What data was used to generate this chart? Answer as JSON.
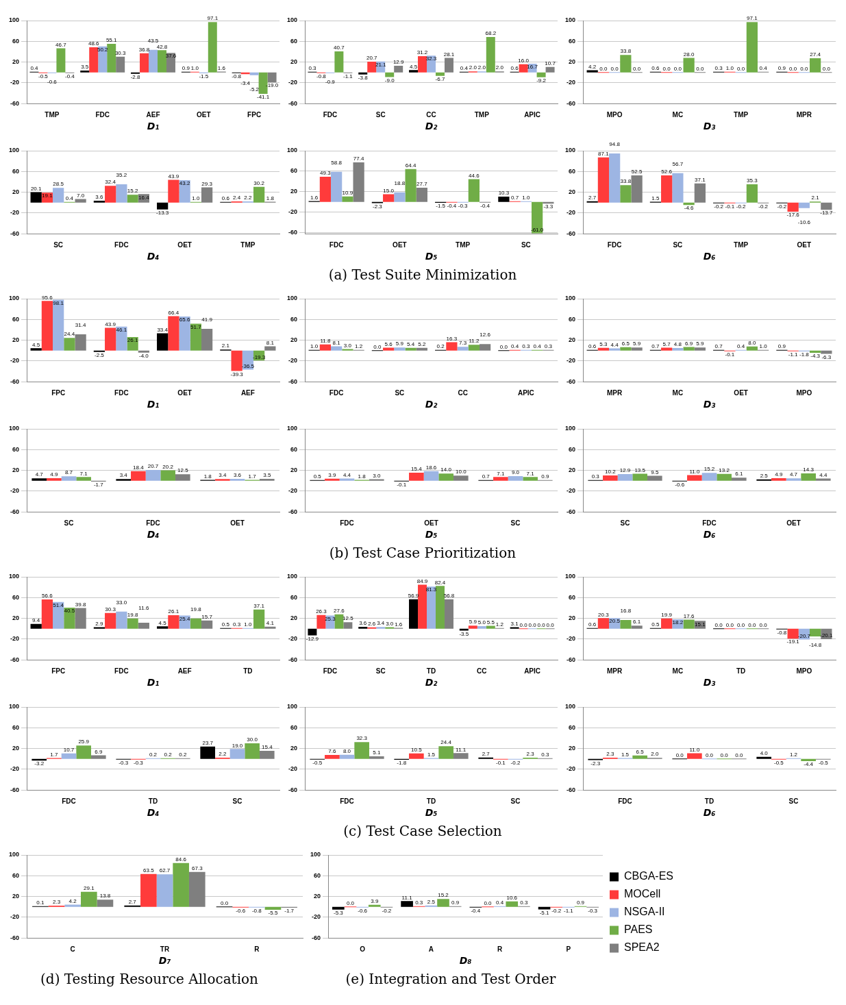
{
  "chart_data": [
    {
      "type": "bar",
      "xlabel": "D₁",
      "categories": [
        "TMP",
        "FDC",
        "AEF",
        "OET",
        "FPC"
      ],
      "ylim": [
        -60,
        100
      ],
      "yticks": [
        -60,
        -20,
        20,
        60,
        100
      ],
      "grid": "y",
      "series": [
        {
          "color": "#000000",
          "values": [
            0.4,
            3.5,
            -2.8,
            0.9,
            -0.8
          ],
          "value_labels": [
            "0.4",
            "3.5",
            "-2.8",
            "0.9",
            "-0.8"
          ]
        },
        {
          "color": "#ff3b3b",
          "values": [
            -0.5,
            48.6,
            36.8,
            1.0,
            -3.4
          ],
          "value_labels": [
            "-0.5",
            "48.6",
            "36.8",
            "1.0",
            "-3.4"
          ]
        },
        {
          "color": "#9db5e3",
          "values": [
            -0.6,
            50.2,
            43.5,
            -1.5,
            -5.2
          ],
          "value_labels": [
            "-0.6",
            "50.2",
            "43.5",
            "-1.5",
            "-5.2"
          ]
        },
        {
          "color": "#70ad47",
          "values": [
            46.7,
            55.1,
            42.8,
            97.1,
            -41.1
          ],
          "value_labels": [
            "46.7",
            "55.1",
            "42.8",
            "97.1",
            "-41.1"
          ]
        },
        {
          "color": "#7f7f7f",
          "values": [
            -0.4,
            30.3,
            37.6,
            1.6,
            -19.0
          ],
          "value_labels": [
            "-0.4",
            "30.3",
            "37.6",
            "1.6",
            "-19.0"
          ]
        }
      ]
    },
    {
      "type": "bar",
      "xlabel": "D₂",
      "categories": [
        "FDC",
        "SC",
        "CC",
        "TMP",
        "APIC"
      ],
      "ylim": [
        -60,
        100
      ],
      "yticks": [
        -60,
        -20,
        20,
        60,
        100
      ],
      "grid": "y",
      "series": [
        {
          "color": "#000000",
          "values": [
            0.3,
            -3.8,
            4.5,
            0.4,
            0.6
          ],
          "value_labels": [
            "0.3",
            "-3.8",
            "4.5",
            "0.4",
            "0.6"
          ]
        },
        {
          "color": "#ff3b3b",
          "values": [
            -0.8,
            20.7,
            31.2,
            2.0,
            16.0
          ],
          "value_labels": [
            "-0.8",
            "20.7",
            "31.2",
            "2.0",
            "16.0"
          ]
        },
        {
          "color": "#9db5e3",
          "values": [
            -0.9,
            21.1,
            32.3,
            2.0,
            16.7
          ],
          "value_labels": [
            "-0.9",
            "21.1",
            "32.3",
            "2.0",
            "16.7"
          ]
        },
        {
          "color": "#70ad47",
          "values": [
            40.7,
            -9.0,
            -6.7,
            68.2,
            -9.2
          ],
          "value_labels": [
            "40.7",
            "-9.0",
            "-6.7",
            "68.2",
            "-9.2"
          ]
        },
        {
          "color": "#7f7f7f",
          "values": [
            -1.1,
            12.9,
            28.1,
            2.0,
            10.7
          ],
          "value_labels": [
            "-1.1",
            "12.9",
            "28.1",
            "2.0",
            "10.7"
          ]
        }
      ]
    },
    {
      "type": "bar",
      "xlabel": "D₃",
      "categories": [
        "MPO",
        "MC",
        "TMP",
        "MPR"
      ],
      "ylim": [
        -60,
        100
      ],
      "yticks": [
        -60,
        -20,
        20,
        60,
        100
      ],
      "grid": "y",
      "series": [
        {
          "color": "#000000",
          "values": [
            4.2,
            0.6,
            0.3,
            0.9
          ],
          "value_labels": [
            "4.2",
            "0.6",
            "0.3",
            "0.9"
          ]
        },
        {
          "color": "#ff3b3b",
          "values": [
            0.0,
            0.0,
            1.0,
            0.0
          ],
          "value_labels": [
            "0.0",
            "0.0",
            "1.0",
            "0.0"
          ]
        },
        {
          "color": "#9db5e3",
          "values": [
            0.0,
            0.0,
            0.0,
            0.0
          ],
          "value_labels": [
            "0.0",
            "0.0",
            "0.0",
            "0.0"
          ]
        },
        {
          "color": "#70ad47",
          "values": [
            33.8,
            28.0,
            97.1,
            27.4
          ],
          "value_labels": [
            "33.8",
            "28.0",
            "97.1",
            "27.4"
          ]
        },
        {
          "color": "#7f7f7f",
          "values": [
            0.0,
            0.0,
            0.4,
            0.0
          ],
          "value_labels": [
            "0.0",
            "0.0",
            "0.4",
            "0.0"
          ]
        }
      ]
    },
    {
      "type": "bar",
      "xlabel": "D₄",
      "categories": [
        "SC",
        "FDC",
        "OET",
        "TMP"
      ],
      "ylim": [
        -60,
        100
      ],
      "yticks": [
        -60,
        -20,
        20,
        60,
        100
      ],
      "grid": "y",
      "series": [
        {
          "color": "#000000",
          "values": [
            20.1,
            3.6,
            -13.3,
            0.6
          ],
          "value_labels": [
            "20.1",
            "3.6",
            "-13.3",
            "0.6"
          ]
        },
        {
          "color": "#ff3b3b",
          "values": [
            19.1,
            32.4,
            43.9,
            2.4
          ],
          "value_labels": [
            "19.1",
            "32.4",
            "43.9",
            "2.4"
          ]
        },
        {
          "color": "#9db5e3",
          "values": [
            28.5,
            35.2,
            43.2,
            2.2
          ],
          "value_labels": [
            "28.5",
            "35.2",
            "43.2",
            "2.2"
          ]
        },
        {
          "color": "#70ad47",
          "values": [
            0.4,
            15.2,
            1.0,
            30.2
          ],
          "value_labels": [
            "0.4",
            "15.2",
            "1.0",
            "30.2"
          ]
        },
        {
          "color": "#7f7f7f",
          "values": [
            7.0,
            16.4,
            29.3,
            1.8
          ],
          "value_labels": [
            "7.0",
            "16.4",
            "29.3",
            "1.8"
          ]
        }
      ]
    },
    {
      "type": "bar",
      "xlabel": "D₅",
      "categories": [
        "FDC",
        "OET",
        "TMP",
        "SC"
      ],
      "ylim": [
        -62,
        100
      ],
      "yticks": [
        -60,
        -20,
        20,
        60,
        100
      ],
      "grid": "y",
      "annotations": [
        "(a) Test Suite Minimization"
      ],
      "series": [
        {
          "color": "#000000",
          "values": [
            1.6,
            -2.3,
            -1.5,
            10.3
          ],
          "value_labels": [
            "1.6",
            "-2.3",
            "-1.5",
            "10.3"
          ]
        },
        {
          "color": "#ff3b3b",
          "values": [
            49.3,
            15.0,
            -0.4,
            0.7
          ],
          "value_labels": [
            "49.3",
            "15.0",
            "-0.4",
            "0.7"
          ]
        },
        {
          "color": "#9db5e3",
          "values": [
            58.8,
            18.8,
            -0.3,
            1.0
          ],
          "value_labels": [
            "58.8",
            "18.8",
            "-0.3",
            "1.0"
          ]
        },
        {
          "color": "#70ad47",
          "values": [
            10.9,
            64.4,
            44.6,
            -61.0
          ],
          "value_labels": [
            "10.9",
            "64.4",
            "44.6",
            "-61.0"
          ]
        },
        {
          "color": "#7f7f7f",
          "values": [
            77.4,
            27.7,
            -0.4,
            -3.3
          ],
          "value_labels": [
            "77.4",
            "27.7",
            "-0.4",
            "-3.3"
          ]
        }
      ]
    },
    {
      "type": "bar",
      "xlabel": "D₆",
      "categories": [
        "FDC",
        "SC",
        "TMP",
        "OET"
      ],
      "ylim": [
        -60,
        100
      ],
      "yticks": [
        -60,
        -20,
        20,
        60,
        100
      ],
      "grid": "y",
      "series": [
        {
          "color": "#000000",
          "values": [
            2.7,
            1.5,
            -0.2,
            -0.2
          ],
          "value_labels": [
            "2.7",
            "1.5",
            "-0.2",
            "-0.2"
          ]
        },
        {
          "color": "#ff3b3b",
          "values": [
            87.1,
            52.6,
            -0.1,
            -17.6
          ],
          "value_labels": [
            "87.1",
            "52.6",
            "-0.1",
            "-17.6"
          ]
        },
        {
          "color": "#9db5e3",
          "values": [
            94.8,
            56.7,
            -0.2,
            -10.6
          ],
          "value_labels": [
            "94.8",
            "56.7",
            "-0.2",
            "-10.6"
          ]
        },
        {
          "color": "#70ad47",
          "values": [
            33.8,
            -4.6,
            35.3,
            2.1
          ],
          "value_labels": [
            "33.8",
            "-4.6",
            "35.3",
            "2.1"
          ]
        },
        {
          "color": "#7f7f7f",
          "values": [
            52.5,
            37.1,
            -0.2,
            -13.7
          ],
          "value_labels": [
            "52.5",
            "37.1",
            "-0.2",
            "-13.7"
          ]
        }
      ]
    },
    {
      "type": "bar",
      "xlabel": "D₁",
      "categories": [
        "FPC",
        "FDC",
        "OET",
        "AEF"
      ],
      "ylim": [
        -60,
        100
      ],
      "yticks": [
        -60,
        -20,
        20,
        60,
        100
      ],
      "grid": "y",
      "series": [
        {
          "color": "#000000",
          "values": [
            4.5,
            -2.5,
            33.4,
            2.1
          ],
          "value_labels": [
            "4.5",
            "-2.5",
            "33.4",
            "2.1"
          ]
        },
        {
          "color": "#ff3b3b",
          "values": [
            95.6,
            43.9,
            66.4,
            -39.3
          ],
          "value_labels": [
            "95.6",
            "43.9",
            "66.4",
            "-39.3"
          ]
        },
        {
          "color": "#9db5e3",
          "values": [
            98.1,
            46.1,
            65.6,
            -36.5
          ],
          "value_labels": [
            "98.1",
            "46.1",
            "65.6",
            "-36.5"
          ]
        },
        {
          "color": "#70ad47",
          "values": [
            24.4,
            26.1,
            51.7,
            -19.3
          ],
          "value_labels": [
            "24.4",
            "26.1",
            "51.7",
            "-19.3"
          ]
        },
        {
          "color": "#7f7f7f",
          "values": [
            31.4,
            -4.0,
            41.9,
            8.1
          ],
          "value_labels": [
            "31.4",
            "-4.0",
            "41.9",
            "8.1"
          ]
        }
      ]
    },
    {
      "type": "bar",
      "xlabel": "D₂",
      "categories": [
        "FDC",
        "SC",
        "CC",
        "APIC"
      ],
      "ylim": [
        -60,
        100
      ],
      "yticks": [
        -60,
        -20,
        20,
        60,
        100
      ],
      "grid": "y",
      "series": [
        {
          "color": "#000000",
          "values": [
            1.0,
            0.0,
            0.2,
            0.0
          ],
          "value_labels": [
            "1.0",
            "0.0",
            "0.2",
            "0.0"
          ]
        },
        {
          "color": "#ff3b3b",
          "values": [
            11.8,
            5.6,
            16.3,
            0.4
          ],
          "value_labels": [
            "11.8",
            "5.6",
            "16.3",
            "0.4"
          ]
        },
        {
          "color": "#9db5e3",
          "values": [
            8.1,
            5.9,
            7.3,
            0.3
          ],
          "value_labels": [
            "8.1",
            "5.9",
            "7.3",
            "0.3"
          ]
        },
        {
          "color": "#70ad47",
          "values": [
            3.0,
            5.4,
            11.2,
            0.4
          ],
          "value_labels": [
            "3.0",
            "5.4",
            "11.2",
            "0.4"
          ]
        },
        {
          "color": "#7f7f7f",
          "values": [
            1.2,
            5.2,
            12.6,
            0.3
          ],
          "value_labels": [
            "1.2",
            "5.2",
            "12.6",
            "0.3"
          ]
        }
      ]
    },
    {
      "type": "bar",
      "xlabel": "D₃",
      "categories": [
        "MPR",
        "MC",
        "OET",
        "MPO"
      ],
      "ylim": [
        -60,
        100
      ],
      "yticks": [
        -60,
        -20,
        20,
        60,
        100
      ],
      "grid": "y",
      "series": [
        {
          "color": "#000000",
          "values": [
            0.6,
            0.7,
            0.7,
            0.9
          ],
          "value_labels": [
            "0.6",
            "0.7",
            "0.7",
            "0.9"
          ]
        },
        {
          "color": "#ff3b3b",
          "values": [
            5.3,
            5.7,
            -0.1,
            -1.1
          ],
          "value_labels": [
            "5.3",
            "5.7",
            "-0.1",
            "-1.1"
          ]
        },
        {
          "color": "#9db5e3",
          "values": [
            4.4,
            4.8,
            0.4,
            -1.8
          ],
          "value_labels": [
            "4.4",
            "4.8",
            "0.4",
            "-1.8"
          ]
        },
        {
          "color": "#70ad47",
          "values": [
            6.5,
            6.9,
            8.0,
            -4.3
          ],
          "value_labels": [
            "6.5",
            "6.9",
            "8.0",
            "-4.3"
          ]
        },
        {
          "color": "#7f7f7f",
          "values": [
            5.9,
            5.9,
            1.0,
            -6.3
          ],
          "value_labels": [
            "5.9",
            "5.9",
            "1.0",
            "-6.3"
          ]
        }
      ]
    },
    {
      "type": "bar",
      "xlabel": "D₄",
      "categories": [
        "SC",
        "FDC",
        "OET"
      ],
      "ylim": [
        -60,
        100
      ],
      "yticks": [
        -60,
        -20,
        20,
        60,
        100
      ],
      "grid": "y",
      "series": [
        {
          "color": "#000000",
          "values": [
            4.7,
            3.4,
            1.8
          ],
          "value_labels": [
            "4.7",
            "3.4",
            "1.8"
          ]
        },
        {
          "color": "#ff3b3b",
          "values": [
            4.9,
            18.4,
            3.4
          ],
          "value_labels": [
            "4.9",
            "18.4",
            "3.4"
          ]
        },
        {
          "color": "#9db5e3",
          "values": [
            8.7,
            20.7,
            3.6
          ],
          "value_labels": [
            "8.7",
            "20.7",
            "3.6"
          ]
        },
        {
          "color": "#70ad47",
          "values": [
            7.1,
            20.2,
            1.7
          ],
          "value_labels": [
            "7.1",
            "20.2",
            "1.7"
          ]
        },
        {
          "color": "#7f7f7f",
          "values": [
            -1.7,
            12.5,
            3.5
          ],
          "value_labels": [
            "-1.7",
            "12.5",
            "3.5"
          ]
        }
      ]
    },
    {
      "type": "bar",
      "xlabel": "D₅",
      "categories": [
        "FDC",
        "OET",
        "SC"
      ],
      "ylim": [
        -60,
        100
      ],
      "yticks": [
        -60,
        -20,
        20,
        60,
        100
      ],
      "grid": "y",
      "annotations": [
        "(b) Test Case Prioritization"
      ],
      "series": [
        {
          "color": "#000000",
          "values": [
            0.5,
            -0.1,
            0.7
          ],
          "value_labels": [
            "0.5",
            "-0.1",
            "0.7"
          ]
        },
        {
          "color": "#ff3b3b",
          "values": [
            3.9,
            15.4,
            7.1
          ],
          "value_labels": [
            "3.9",
            "15.4",
            "7.1"
          ]
        },
        {
          "color": "#9db5e3",
          "values": [
            4.4,
            18.6,
            9.0
          ],
          "value_labels": [
            "4.4",
            "18.6",
            "9.0"
          ]
        },
        {
          "color": "#70ad47",
          "values": [
            1.8,
            14.0,
            7.1
          ],
          "value_labels": [
            "1.8",
            "14.0",
            "7.1"
          ]
        },
        {
          "color": "#7f7f7f",
          "values": [
            3.0,
            10.0,
            0.9
          ],
          "value_labels": [
            "3.0",
            "10.0",
            "0.9"
          ]
        }
      ]
    },
    {
      "type": "bar",
      "xlabel": "D₆",
      "categories": [
        "SC",
        "FDC",
        "OET"
      ],
      "ylim": [
        -60,
        100
      ],
      "yticks": [
        -60,
        -20,
        20,
        60,
        100
      ],
      "grid": "y",
      "series": [
        {
          "color": "#000000",
          "values": [
            0.3,
            -0.6,
            2.5
          ],
          "value_labels": [
            "0.3",
            "-0.6",
            "2.5"
          ]
        },
        {
          "color": "#ff3b3b",
          "values": [
            10.2,
            11.0,
            4.9
          ],
          "value_labels": [
            "10.2",
            "11.0",
            "4.9"
          ]
        },
        {
          "color": "#9db5e3",
          "values": [
            12.9,
            15.2,
            4.7
          ],
          "value_labels": [
            "12.9",
            "15.2",
            "4.7"
          ]
        },
        {
          "color": "#70ad47",
          "values": [
            13.5,
            13.2,
            14.3
          ],
          "value_labels": [
            "13.5",
            "13.2",
            "14.3"
          ]
        },
        {
          "color": "#7f7f7f",
          "values": [
            9.5,
            6.1,
            4.4
          ],
          "value_labels": [
            "9.5",
            "6.1",
            "4.4"
          ]
        }
      ]
    },
    {
      "type": "bar",
      "xlabel": "D₁",
      "categories": [
        "FPC",
        "FDC",
        "AEF",
        "TD"
      ],
      "ylim": [
        -60,
        100
      ],
      "yticks": [
        -60,
        -20,
        20,
        60,
        100
      ],
      "grid": "y",
      "series": [
        {
          "color": "#000000",
          "values": [
            9.4,
            2.9,
            4.5,
            0.5
          ],
          "value_labels": [
            "9.4",
            "2.9",
            "4.5",
            "0.5"
          ]
        },
        {
          "color": "#ff3b3b",
          "values": [
            56.6,
            30.3,
            26.1,
            0.3
          ],
          "value_labels": [
            "56.6",
            "30.3",
            "26.1",
            "0.3"
          ]
        },
        {
          "color": "#9db5e3",
          "values": [
            51.4,
            33.0,
            25.4,
            1.0
          ],
          "value_labels": [
            "51.4",
            "33.0",
            "25.4",
            "1.0"
          ]
        },
        {
          "color": "#70ad47",
          "values": [
            40.5,
            19.8,
            19.8,
            37.1
          ],
          "value_labels": [
            "40.5",
            "19.8",
            "19.8",
            "37.1"
          ]
        },
        {
          "color": "#7f7f7f",
          "values": [
            39.8,
            11.6,
            15.7,
            4.1
          ],
          "value_labels": [
            "39.8",
            "11.6",
            "15.7",
            "4.1"
          ]
        }
      ]
    },
    {
      "type": "bar",
      "xlabel": "D₂",
      "categories": [
        "FDC",
        "SC",
        "TD",
        "CC",
        "APIC"
      ],
      "ylim": [
        -60,
        100
      ],
      "yticks": [
        -60,
        -20,
        20,
        60,
        100
      ],
      "grid": "y",
      "series": [
        {
          "color": "#000000",
          "values": [
            -12.9,
            3.6,
            56.9,
            -3.5,
            3.1
          ],
          "value_labels": [
            "-12.9",
            "3.6",
            "56.9",
            "-3.5",
            "3.1"
          ]
        },
        {
          "color": "#ff3b3b",
          "values": [
            26.3,
            2.6,
            84.9,
            5.9,
            0.0
          ],
          "value_labels": [
            "26.3",
            "2.6",
            "84.9",
            "5.9",
            "0.0"
          ]
        },
        {
          "color": "#9db5e3",
          "values": [
            25.3,
            3.4,
            81.3,
            5.0,
            0.0
          ],
          "value_labels": [
            "25.3",
            "3.4",
            "81.3",
            "5.0",
            "0.0"
          ]
        },
        {
          "color": "#70ad47",
          "values": [
            27.6,
            3.0,
            82.4,
            5.5,
            0.0
          ],
          "value_labels": [
            "27.6",
            "3.0",
            "82.4",
            "5.5",
            "0.0"
          ]
        },
        {
          "color": "#7f7f7f",
          "values": [
            12.5,
            1.6,
            56.8,
            1.2,
            0.0
          ],
          "value_labels": [
            "12.5",
            "1.6",
            "56.8",
            "1.2",
            "0.0"
          ]
        }
      ]
    },
    {
      "type": "bar",
      "xlabel": "D₃",
      "categories": [
        "MPR",
        "MC",
        "TD",
        "MPO"
      ],
      "ylim": [
        -60,
        100
      ],
      "yticks": [
        -60,
        -20,
        20,
        60,
        100
      ],
      "grid": "y",
      "series": [
        {
          "color": "#000000",
          "values": [
            0.6,
            0.5,
            0.0,
            -0.8
          ],
          "value_labels": [
            "0.6",
            "0.5",
            "0.0",
            "-0.8"
          ]
        },
        {
          "color": "#ff3b3b",
          "values": [
            20.3,
            19.9,
            0.0,
            -19.1
          ],
          "value_labels": [
            "20.3",
            "19.9",
            "0.0",
            "-19.1"
          ]
        },
        {
          "color": "#9db5e3",
          "values": [
            20.5,
            18.2,
            0.0,
            -20.7
          ],
          "value_labels": [
            "20.5",
            "18.2",
            "0.0",
            "-20.7"
          ]
        },
        {
          "color": "#70ad47",
          "values": [
            16.8,
            17.6,
            0.0,
            -14.8
          ],
          "value_labels": [
            "16.8",
            "17.6",
            "0.0",
            "-14.8"
          ]
        },
        {
          "color": "#7f7f7f",
          "values": [
            6.1,
            15.1,
            0.0,
            -20.1
          ],
          "value_labels": [
            "6.1",
            "15.1",
            "0.0",
            "-20.1"
          ]
        }
      ]
    },
    {
      "type": "bar",
      "xlabel": "D₄",
      "categories": [
        "FDC",
        "TD",
        "SC"
      ],
      "ylim": [
        -60,
        100
      ],
      "yticks": [
        -60,
        -20,
        20,
        60,
        100
      ],
      "grid": "y",
      "series": [
        {
          "color": "#000000",
          "values": [
            -3.2,
            -0.3,
            23.7
          ],
          "value_labels": [
            "-3.2",
            "-0.3",
            "23.7"
          ]
        },
        {
          "color": "#ff3b3b",
          "values": [
            1.7,
            -0.3,
            2.2
          ],
          "value_labels": [
            "1.7",
            "-0.3",
            "2.2"
          ]
        },
        {
          "color": "#9db5e3",
          "values": [
            10.7,
            0.2,
            19.0
          ],
          "value_labels": [
            "10.7",
            "0.2",
            "19.0"
          ]
        },
        {
          "color": "#70ad47",
          "values": [
            25.9,
            0.2,
            30.0
          ],
          "value_labels": [
            "25.9",
            "0.2",
            "30.0"
          ]
        },
        {
          "color": "#7f7f7f",
          "values": [
            6.9,
            0.2,
            15.4
          ],
          "value_labels": [
            "6.9",
            "0.2",
            "15.4"
          ]
        }
      ]
    },
    {
      "type": "bar",
      "xlabel": "D₅",
      "categories": [
        "FDC",
        "TD",
        "SC"
      ],
      "ylim": [
        -60,
        100
      ],
      "yticks": [
        -60,
        -20,
        20,
        60,
        100
      ],
      "grid": "y",
      "annotations": [
        "(c) Test Case Selection"
      ],
      "series": [
        {
          "color": "#000000",
          "values": [
            -0.5,
            -1.8,
            2.7
          ],
          "value_labels": [
            "-0.5",
            "-1.8",
            "2.7"
          ]
        },
        {
          "color": "#ff3b3b",
          "values": [
            7.6,
            10.5,
            -0.1
          ],
          "value_labels": [
            "7.6",
            "10.5",
            "-0.1"
          ]
        },
        {
          "color": "#9db5e3",
          "values": [
            8.0,
            1.5,
            -0.2
          ],
          "value_labels": [
            "8.0",
            "1.5",
            "-0.2"
          ]
        },
        {
          "color": "#70ad47",
          "values": [
            32.3,
            24.4,
            2.3
          ],
          "value_labels": [
            "32.3",
            "24.4",
            "2.3"
          ]
        },
        {
          "color": "#7f7f7f",
          "values": [
            5.1,
            11.1,
            0.3
          ],
          "value_labels": [
            "5.1",
            "11.1",
            "0.3"
          ]
        }
      ]
    },
    {
      "type": "bar",
      "xlabel": "D₆",
      "categories": [
        "FDC",
        "TD",
        "SC"
      ],
      "ylim": [
        -60,
        100
      ],
      "yticks": [
        -60,
        -20,
        20,
        60,
        100
      ],
      "grid": "y",
      "series": [
        {
          "color": "#000000",
          "values": [
            -2.3,
            0.0,
            4.0
          ],
          "value_labels": [
            "-2.3",
            "0.0",
            "4.0"
          ]
        },
        {
          "color": "#ff3b3b",
          "values": [
            2.3,
            11.0,
            -0.5
          ],
          "value_labels": [
            "2.3",
            "11.0",
            "-0.5"
          ]
        },
        {
          "color": "#9db5e3",
          "values": [
            1.5,
            0.0,
            1.2
          ],
          "value_labels": [
            "1.5",
            "0.0",
            "1.2"
          ]
        },
        {
          "color": "#70ad47",
          "values": [
            6.5,
            0.0,
            -4.4
          ],
          "value_labels": [
            "6.5",
            "0.0",
            "-4.4"
          ]
        },
        {
          "color": "#7f7f7f",
          "values": [
            2.0,
            0.0,
            -0.5
          ],
          "value_labels": [
            "2.0",
            "0.0",
            "-0.5"
          ]
        }
      ]
    },
    {
      "type": "bar",
      "xlabel": "D₇",
      "categories": [
        "C",
        "TR",
        "R"
      ],
      "ylim": [
        -60,
        100
      ],
      "yticks": [
        -60,
        -20,
        20,
        60,
        100
      ],
      "grid": "y",
      "annotations": [
        "(d) Testing Resource Allocation"
      ],
      "series": [
        {
          "color": "#000000",
          "values": [
            0.1,
            2.7,
            0.0
          ],
          "value_labels": [
            "0.1",
            "2.7",
            "0.0"
          ]
        },
        {
          "color": "#ff3b3b",
          "values": [
            2.3,
            63.5,
            -0.6
          ],
          "value_labels": [
            "2.3",
            "63.5",
            "-0.6"
          ]
        },
        {
          "color": "#9db5e3",
          "values": [
            4.2,
            62.7,
            -0.8
          ],
          "value_labels": [
            "4.2",
            "62.7",
            "-0.8"
          ]
        },
        {
          "color": "#70ad47",
          "values": [
            29.1,
            84.6,
            -5.5
          ],
          "value_labels": [
            "29.1",
            "84.6",
            "-5.5"
          ]
        },
        {
          "color": "#7f7f7f",
          "values": [
            13.8,
            67.3,
            -1.7
          ],
          "value_labels": [
            "13.8",
            "67.3",
            "-1.7"
          ]
        }
      ]
    },
    {
      "type": "bar",
      "xlabel": "D₈",
      "categories": [
        "O",
        "A",
        "R",
        "P"
      ],
      "ylim": [
        -60,
        100
      ],
      "yticks": [
        -60,
        -20,
        20,
        60,
        100
      ],
      "grid": "y",
      "legend": "right",
      "annotations": [
        "(e) Integration and Test Order"
      ],
      "series": [
        {
          "name": "CBGA-ES",
          "color": "#000000",
          "values": [
            -5.3,
            11.1,
            -0.4,
            -5.1
          ],
          "value_labels": [
            "-5.3",
            "11.1",
            "-0.4",
            "-5.1"
          ]
        },
        {
          "name": "MOCell",
          "color": "#ff3b3b",
          "values": [
            0.0,
            0.3,
            0.0,
            -0.2
          ],
          "value_labels": [
            "0.0",
            "0.3",
            "0.0",
            "-0.2"
          ]
        },
        {
          "name": "NSGA-II",
          "color": "#9db5e3",
          "values": [
            -0.6,
            2.5,
            0.4,
            -1.1
          ],
          "value_labels": [
            "-0.6",
            "2.5",
            "0.4",
            "-1.1"
          ]
        },
        {
          "name": "PAES",
          "color": "#70ad47",
          "values": [
            3.9,
            15.2,
            10.6,
            0.9
          ],
          "value_labels": [
            "3.9",
            "15.2",
            "10.6",
            "0.9"
          ]
        },
        {
          "name": "SPEA2",
          "color": "#7f7f7f",
          "values": [
            -0.2,
            0.9,
            0.3,
            -0.3
          ],
          "value_labels": [
            "-0.2",
            "0.9",
            "0.3",
            "-0.3"
          ]
        }
      ]
    }
  ]
}
